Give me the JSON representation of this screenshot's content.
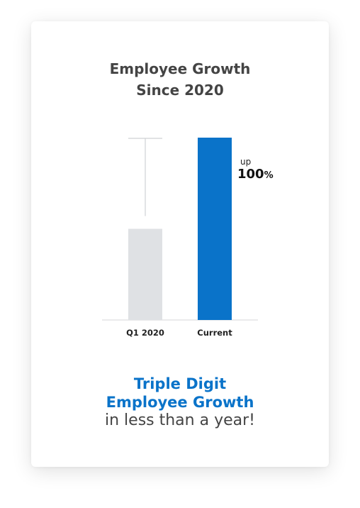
{
  "title": {
    "line1": "Employee Growth",
    "line2": "Since 2020"
  },
  "chart_data": {
    "type": "bar",
    "categories": [
      "Q1 2020",
      "Current"
    ],
    "values": [
      50,
      100
    ],
    "ylim": [
      0,
      100
    ],
    "colors": [
      "#dfe1e4",
      "#0a73c9"
    ],
    "annotation": {
      "prefix": "up",
      "value": "100",
      "unit": "%"
    }
  },
  "tagline": {
    "line1": "Triple Digit",
    "line2": "Employee Growth",
    "line3": "in less than a year!"
  },
  "colors": {
    "accent": "#0a73c9",
    "baseline_bar": "#dfe1e4",
    "text": "#444444"
  }
}
